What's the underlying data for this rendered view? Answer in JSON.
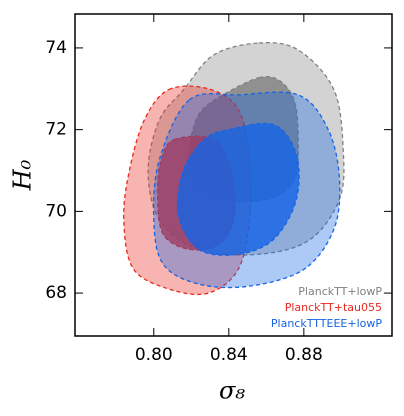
{
  "chart_data": {
    "type": "contour",
    "x_label": "σ₈",
    "y_label": "H₀",
    "xlim": [
      0.758,
      0.927
    ],
    "ylim": [
      66.95,
      74.83
    ],
    "xticks": [
      {
        "value": 0.8,
        "label": "0.80"
      },
      0.84,
      0.88
    ],
    "yticks": [
      68,
      70,
      72,
      74
    ],
    "legend": "lower right",
    "series": [
      {
        "name": "PlanckTT+lowP",
        "color": "#808080",
        "contours": [
          {
            "x": [
              0.856,
              0.877,
              0.896,
              0.901,
              0.899,
              0.883,
              0.856,
              0.824,
              0.803,
              0.797,
              0.803,
              0.816,
              0.832
            ],
            "y": [
              74.12,
              73.95,
              72.98,
              71.5,
              70.3,
              69.3,
              68.95,
              69.07,
              69.8,
              71.0,
              72.24,
              72.98,
              73.83
            ]
          },
          {
            "x": [
              0.856,
              0.867,
              0.875,
              0.877,
              0.875,
              0.861,
              0.837,
              0.821,
              0.819,
              0.824,
              0.837
            ],
            "y": [
              73.27,
              73.2,
              72.7,
              71.75,
              70.78,
              70.3,
              70.3,
              70.78,
              71.5,
              72.37,
              72.85
            ]
          }
        ]
      },
      {
        "name": "PlanckTT+tau055",
        "color": "#e8281e",
        "contours": [
          {
            "x": [
              0.808,
              0.829,
              0.845,
              0.851,
              0.851,
              0.845,
              0.829,
              0.808,
              0.789,
              0.784,
              0.787,
              0.795
            ],
            "y": [
              72.98,
              73.0,
              72.5,
              71.27,
              69.8,
              68.58,
              68.0,
              68.1,
              68.6,
              69.8,
              71.0,
              72.24
            ]
          },
          {
            "x": [
              0.811,
              0.832,
              0.841,
              0.843,
              0.835,
              0.819,
              0.805,
              0.802,
              0.804
            ],
            "y": [
              71.76,
              71.76,
              71.02,
              69.9,
              69.2,
              69.07,
              69.44,
              70.41,
              71.27
            ]
          }
        ]
      },
      {
        "name": "PlanckTTTEEE+lowP",
        "color": "#1464e6",
        "contours": [
          {
            "x": [
              0.819,
              0.845,
              0.877,
              0.893,
              0.899,
              0.896,
              0.88,
              0.851,
              0.824,
              0.805,
              0.8,
              0.803
            ],
            "y": [
              72.73,
              72.85,
              72.85,
              72.0,
              70.78,
              69.56,
              68.58,
              68.17,
              68.22,
              68.71,
              69.8,
              71.27
            ]
          },
          {
            "x": [
              0.84,
              0.864,
              0.876,
              0.876,
              0.864,
              0.845,
              0.824,
              0.813,
              0.816,
              0.827
            ],
            "y": [
              72.0,
              72.12,
              71.39,
              70.29,
              69.32,
              68.95,
              69.07,
              69.93,
              71.02,
              71.76
            ]
          }
        ]
      }
    ]
  }
}
